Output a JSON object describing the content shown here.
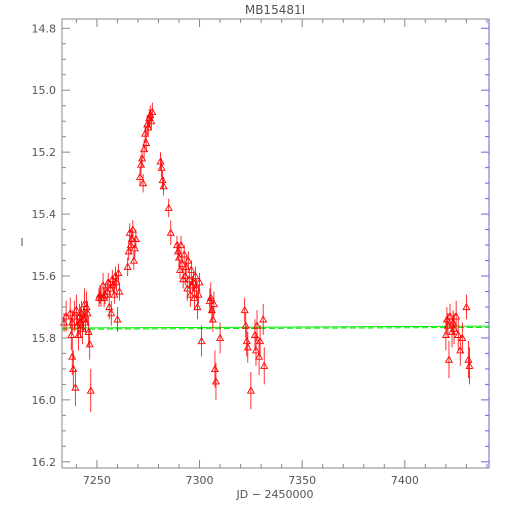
{
  "chart_data": {
    "type": "scatter",
    "title": "MB15481I",
    "xlabel": "JD − 2450000",
    "ylabel": "I",
    "xlim": [
      7233,
      7441
    ],
    "ylim": [
      16.22,
      14.77
    ],
    "y_inverted": true,
    "x_ticks": [
      7250,
      7300,
      7350,
      7400
    ],
    "y_ticks": [
      14.8,
      15.0,
      15.2,
      15.4,
      15.6,
      15.8,
      16.0,
      16.2
    ],
    "x_tick_labels": [
      "7250",
      "7300",
      "7350",
      "7400"
    ],
    "y_tick_labels": [
      "14.8",
      "15.0",
      "15.2",
      "15.4",
      "15.6",
      "15.8",
      "16.0",
      "16.2"
    ],
    "colors": {
      "data": "#ff0000",
      "baseline": "#00ee00",
      "axis": "#888888",
      "right_axis": "#6666cc"
    },
    "baseline": {
      "x": [
        7233,
        7441
      ],
      "y": [
        15.768,
        15.762
      ],
      "dashed_offset": 0.004
    },
    "series": [
      {
        "marker": "triangle-open",
        "color": "#ff0000",
        "points": [
          [
            7234,
            15.75,
            0.03
          ],
          [
            7235,
            15.73,
            0.05
          ],
          [
            7237,
            15.72,
            0.05
          ],
          [
            7237.5,
            15.79,
            0.05
          ],
          [
            7238,
            15.75,
            0.04
          ],
          [
            7238,
            15.86,
            0.06
          ],
          [
            7238.5,
            15.9,
            0.06
          ],
          [
            7239,
            15.73,
            0.05
          ],
          [
            7239.5,
            15.96,
            0.06
          ],
          [
            7240,
            15.71,
            0.05
          ],
          [
            7240.5,
            15.76,
            0.04
          ],
          [
            7241,
            15.79,
            0.05
          ],
          [
            7241.5,
            15.73,
            0.04
          ],
          [
            7242,
            15.75,
            0.05
          ],
          [
            7242.5,
            15.72,
            0.04
          ],
          [
            7243,
            15.77,
            0.05
          ],
          [
            7243.5,
            15.74,
            0.04
          ],
          [
            7244,
            15.69,
            0.05
          ],
          [
            7244.5,
            15.75,
            0.04
          ],
          [
            7245,
            15.7,
            0.05
          ],
          [
            7245.5,
            15.72,
            0.04
          ],
          [
            7246,
            15.78,
            0.05
          ],
          [
            7246.5,
            15.82,
            0.05
          ],
          [
            7247,
            15.97,
            0.07
          ],
          [
            7251,
            15.67,
            0.03
          ],
          [
            7251.5,
            15.66,
            0.03
          ],
          [
            7252,
            15.67,
            0.03
          ],
          [
            7253,
            15.63,
            0.04
          ],
          [
            7253.5,
            15.67,
            0.03
          ],
          [
            7254,
            15.66,
            0.03
          ],
          [
            7255,
            15.65,
            0.03
          ],
          [
            7255.5,
            15.62,
            0.03
          ],
          [
            7256,
            15.7,
            0.04
          ],
          [
            7256.5,
            15.64,
            0.03
          ],
          [
            7257,
            15.72,
            0.04
          ],
          [
            7257.5,
            15.61,
            0.03
          ],
          [
            7258,
            15.63,
            0.03
          ],
          [
            7258.5,
            15.66,
            0.03
          ],
          [
            7259,
            15.6,
            0.03
          ],
          [
            7259.5,
            15.62,
            0.03
          ],
          [
            7260,
            15.74,
            0.04
          ],
          [
            7260.5,
            15.59,
            0.03
          ],
          [
            7261,
            15.65,
            0.03
          ],
          [
            7265,
            15.57,
            0.03
          ],
          [
            7265.5,
            15.52,
            0.03
          ],
          [
            7266,
            15.46,
            0.03
          ],
          [
            7266.5,
            15.5,
            0.03
          ],
          [
            7267,
            15.48,
            0.03
          ],
          [
            7267.5,
            15.45,
            0.03
          ],
          [
            7268,
            15.55,
            0.03
          ],
          [
            7268.5,
            15.51,
            0.03
          ],
          [
            7269,
            15.48,
            0.03
          ],
          [
            7271,
            15.28,
            0.03
          ],
          [
            7271.5,
            15.24,
            0.03
          ],
          [
            7272,
            15.22,
            0.03
          ],
          [
            7272.5,
            15.3,
            0.03
          ],
          [
            7273,
            15.19,
            0.03
          ],
          [
            7273.5,
            15.14,
            0.03
          ],
          [
            7274,
            15.17,
            0.03
          ],
          [
            7274.5,
            15.11,
            0.03
          ],
          [
            7275,
            15.12,
            0.03
          ],
          [
            7275.5,
            15.09,
            0.03
          ],
          [
            7276,
            15.08,
            0.03
          ],
          [
            7276.5,
            15.1,
            0.03
          ],
          [
            7277,
            15.07,
            0.03
          ],
          [
            7281,
            15.23,
            0.03
          ],
          [
            7281.5,
            15.25,
            0.03
          ],
          [
            7282,
            15.29,
            0.03
          ],
          [
            7282.5,
            15.31,
            0.03
          ],
          [
            7285,
            15.38,
            0.03
          ],
          [
            7286,
            15.46,
            0.04
          ],
          [
            7289,
            15.5,
            0.03
          ],
          [
            7289.5,
            15.52,
            0.03
          ],
          [
            7290,
            15.54,
            0.03
          ],
          [
            7290.5,
            15.58,
            0.03
          ],
          [
            7291,
            15.5,
            0.03
          ],
          [
            7291.5,
            15.56,
            0.03
          ],
          [
            7292,
            15.61,
            0.03
          ],
          [
            7292.5,
            15.53,
            0.03
          ],
          [
            7293,
            15.6,
            0.03
          ],
          [
            7293.5,
            15.57,
            0.03
          ],
          [
            7294,
            15.64,
            0.04
          ],
          [
            7294.5,
            15.55,
            0.03
          ],
          [
            7295,
            15.61,
            0.03
          ],
          [
            7295.5,
            15.66,
            0.04
          ],
          [
            7296,
            15.58,
            0.03
          ],
          [
            7296.5,
            15.63,
            0.03
          ],
          [
            7297,
            15.62,
            0.03
          ],
          [
            7297.5,
            15.67,
            0.04
          ],
          [
            7298,
            15.6,
            0.03
          ],
          [
            7298.5,
            15.64,
            0.03
          ],
          [
            7299,
            15.7,
            0.04
          ],
          [
            7299.5,
            15.66,
            0.03
          ],
          [
            7300,
            15.62,
            0.03
          ],
          [
            7301,
            15.81,
            0.05
          ],
          [
            7305,
            15.68,
            0.04
          ],
          [
            7305.5,
            15.67,
            0.05
          ],
          [
            7306,
            15.71,
            0.04
          ],
          [
            7306.5,
            15.74,
            0.04
          ],
          [
            7307,
            15.69,
            0.04
          ],
          [
            7307.5,
            15.9,
            0.06
          ],
          [
            7308,
            15.94,
            0.06
          ],
          [
            7310,
            15.8,
            0.05
          ],
          [
            7322,
            15.71,
            0.04
          ],
          [
            7322.5,
            15.76,
            0.04
          ],
          [
            7323,
            15.81,
            0.05
          ],
          [
            7323.5,
            15.83,
            0.05
          ],
          [
            7325,
            15.97,
            0.06
          ],
          [
            7327,
            15.79,
            0.05
          ],
          [
            7327.5,
            15.84,
            0.05
          ],
          [
            7328,
            15.76,
            0.05
          ],
          [
            7329,
            15.86,
            0.06
          ],
          [
            7329.5,
            15.81,
            0.05
          ],
          [
            7331,
            15.74,
            0.05
          ],
          [
            7331.5,
            15.89,
            0.06
          ],
          [
            7420,
            15.79,
            0.05
          ],
          [
            7420.5,
            15.74,
            0.04
          ],
          [
            7421,
            15.76,
            0.04
          ],
          [
            7421.5,
            15.87,
            0.06
          ],
          [
            7422,
            15.73,
            0.04
          ],
          [
            7423,
            15.78,
            0.05
          ],
          [
            7423.5,
            15.75,
            0.04
          ],
          [
            7424,
            15.77,
            0.05
          ],
          [
            7425,
            15.73,
            0.05
          ],
          [
            7426,
            15.79,
            0.05
          ],
          [
            7427,
            15.84,
            0.05
          ],
          [
            7428,
            15.8,
            0.05
          ],
          [
            7430,
            15.7,
            0.04
          ],
          [
            7431,
            15.87,
            0.06
          ],
          [
            7431.5,
            15.89,
            0.06
          ]
        ]
      }
    ]
  }
}
